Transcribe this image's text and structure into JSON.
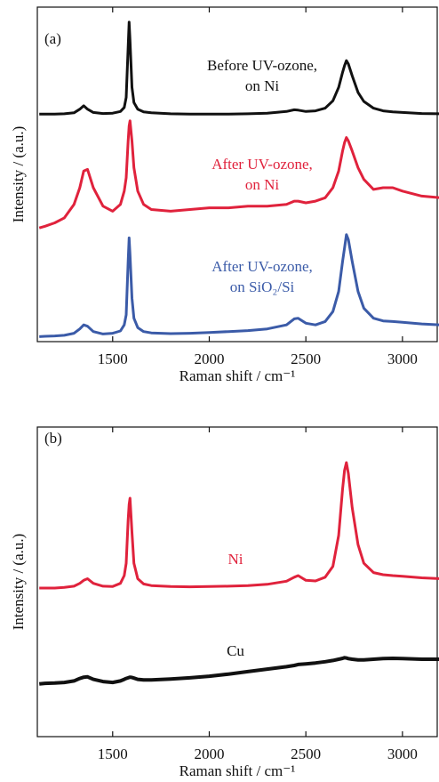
{
  "chart_data": [
    {
      "type": "line",
      "panel_label": "(a)",
      "x_label": "Raman shift / cm⁻¹",
      "y_label": "Intensity / (a.u.)",
      "xlim": [
        1110,
        3180
      ],
      "ylim": [
        0,
        100
      ],
      "xticks": [
        1500,
        2000,
        2500,
        3000
      ],
      "x": [
        1120,
        1150,
        1200,
        1250,
        1300,
        1330,
        1350,
        1370,
        1400,
        1450,
        1500,
        1540,
        1560,
        1570,
        1580,
        1585,
        1590,
        1600,
        1610,
        1630,
        1660,
        1700,
        1800,
        1900,
        2000,
        2100,
        2200,
        2300,
        2400,
        2440,
        2460,
        2500,
        2550,
        2600,
        2640,
        2670,
        2690,
        2700,
        2710,
        2720,
        2740,
        2770,
        2800,
        2850,
        2900,
        2950,
        3000,
        3100,
        3200
      ],
      "series": [
        {
          "label": [
            "Before UV-ozone,",
            "on Ni"
          ],
          "color": "#111111",
          "values": [
            68,
            68,
            68,
            68.1,
            68.4,
            69.5,
            70.5,
            69.5,
            68.5,
            68.2,
            68.3,
            68.8,
            70,
            73,
            88,
            95.5,
            90,
            76,
            71.5,
            69.5,
            68.7,
            68.4,
            68.1,
            68,
            68,
            68,
            68.1,
            68.3,
            68.8,
            69.3,
            69.2,
            68.8,
            69,
            69.8,
            72,
            76,
            80.5,
            82.5,
            84,
            83,
            79.5,
            74.5,
            71.8,
            69.8,
            69,
            68.7,
            68.5,
            68.2,
            68.1
          ]
        },
        {
          "label": [
            "After UV-ozone,",
            "on Ni"
          ],
          "color": "#e0223c",
          "values": [
            34,
            34.5,
            35.5,
            37,
            41,
            46,
            51,
            51.5,
            46,
            40.5,
            39,
            41,
            45,
            49,
            60,
            64.5,
            66,
            60,
            52,
            45,
            41,
            39.5,
            39,
            39.5,
            40,
            40,
            40.5,
            40.5,
            41,
            42,
            42,
            41.5,
            42,
            43,
            46,
            51,
            57,
            59.5,
            61,
            60,
            57,
            52,
            48.5,
            45.5,
            46,
            46,
            45,
            43.5,
            43
          ]
        },
        {
          "label": [
            "After UV-ozone,",
            "on SiO₂/Si"
          ],
          "color": "#3b5ba8",
          "values": [
            1.5,
            1.6,
            1.7,
            1.9,
            2.5,
            3.8,
            5,
            4.6,
            3,
            2.3,
            2.5,
            3.2,
            5,
            8,
            24,
            31,
            26,
            13,
            7,
            4.2,
            3,
            2.6,
            2.4,
            2.5,
            2.7,
            3,
            3.3,
            3.8,
            5,
            6.8,
            7,
            5.5,
            5,
            6,
            9,
            15,
            24,
            28,
            32,
            30.5,
            24,
            15,
            10,
            7,
            6.2,
            6,
            5.8,
            5.3,
            5
          ]
        }
      ]
    },
    {
      "type": "line",
      "panel_label": "(b)",
      "x_label": "Raman shift / cm⁻¹",
      "y_label": "Intensity / (a.u.)",
      "xlim": [
        1110,
        3180
      ],
      "ylim": [
        0,
        100
      ],
      "xticks": [
        1500,
        2000,
        2500,
        3000
      ],
      "x": [
        1120,
        1150,
        1200,
        1250,
        1300,
        1330,
        1350,
        1370,
        1400,
        1450,
        1500,
        1540,
        1560,
        1570,
        1580,
        1585,
        1590,
        1600,
        1610,
        1630,
        1660,
        1700,
        1800,
        1900,
        2000,
        2100,
        2200,
        2300,
        2400,
        2440,
        2460,
        2500,
        2550,
        2600,
        2640,
        2670,
        2690,
        2700,
        2710,
        2720,
        2740,
        2770,
        2800,
        2850,
        2900,
        2950,
        3000,
        3100,
        3200
      ],
      "series": [
        {
          "label": [
            "Ni"
          ],
          "color": "#e0223c",
          "values": [
            48,
            48,
            48,
            48.2,
            48.6,
            49.5,
            50.5,
            51,
            49.5,
            48.6,
            48.5,
            49.5,
            52,
            56,
            70,
            75,
            77,
            66,
            56,
            51,
            49.3,
            48.8,
            48.5,
            48.4,
            48.5,
            48.6,
            48.8,
            49.2,
            50.2,
            51.5,
            52,
            50.5,
            50.3,
            51.5,
            55,
            65,
            80,
            86,
            88.5,
            85,
            74,
            62,
            56,
            53,
            52.3,
            52,
            51.8,
            51.3,
            51
          ]
        },
        {
          "label": [
            "Cu"
          ],
          "color": "#111111",
          "values": [
            17,
            17.2,
            17.3,
            17.5,
            18,
            18.8,
            19.2,
            19.3,
            18.5,
            17.8,
            17.5,
            18,
            18.5,
            18.8,
            19,
            19.1,
            19.2,
            19.1,
            18.9,
            18.5,
            18.3,
            18.3,
            18.6,
            19,
            19.5,
            20.2,
            21,
            21.8,
            22.6,
            23,
            23.3,
            23.5,
            23.8,
            24.2,
            24.6,
            25,
            25.3,
            25.5,
            25.4,
            25.2,
            25,
            24.8,
            24.8,
            25,
            25.2,
            25.3,
            25.2,
            25,
            25
          ]
        }
      ]
    }
  ]
}
